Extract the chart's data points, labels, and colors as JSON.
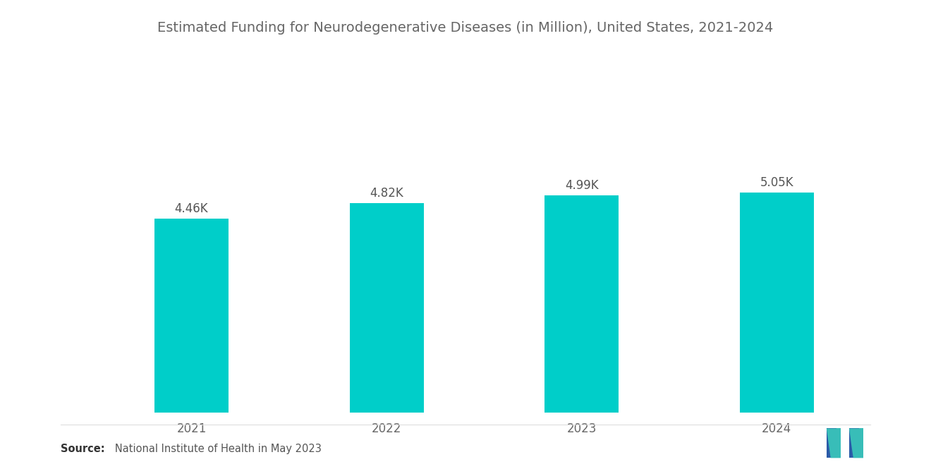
{
  "title": "Estimated Funding for Neurodegenerative Diseases (in Million), United States, 2021-2024",
  "categories": [
    "2021",
    "2022",
    "2023",
    "2024"
  ],
  "values": [
    4460,
    4820,
    4990,
    5050
  ],
  "labels": [
    "4.46K",
    "4.82K",
    "4.99K",
    "5.05K"
  ],
  "bar_color": "#00CEC9",
  "background_color": "#FFFFFF",
  "title_color": "#666666",
  "label_color": "#555555",
  "tick_color": "#666666",
  "source_bold": "Source:",
  "source_text": "   National Institute of Health in May 2023",
  "ylim": [
    0,
    7000
  ],
  "bar_width": 0.38,
  "title_fontsize": 14,
  "label_fontsize": 12,
  "tick_fontsize": 12,
  "source_fontsize": 10.5,
  "logo_blue": "#2B5BA8",
  "logo_teal": "#38BDB8"
}
